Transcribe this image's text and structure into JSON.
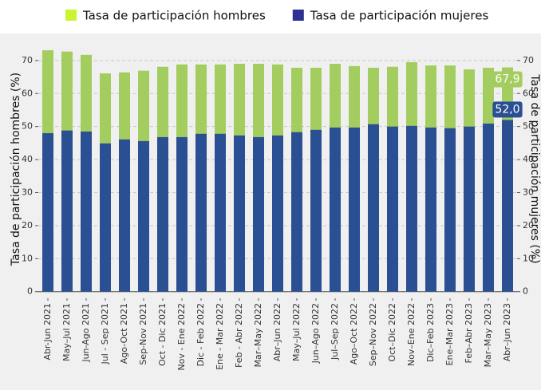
{
  "chart_data": {
    "type": "overlay_bar",
    "categories": [
      "Abr-Jun 2021",
      "May–Jul 2021",
      "Jun-Ago 2021",
      "Jul - Sep 2021",
      "Ago-Oct 2021",
      "Sep-Nov 2021",
      "Oct - Dic 2021",
      "Nov - Ene 2022",
      "Dic - Feb 2022",
      "Ene - Mar 2022",
      "Feb - Abr 2022",
      "Mar–May 2022",
      "Abr–Jun 2022",
      "May–Jul 2022",
      "Jun–Ago 2022",
      "Jul–Sep 2022",
      "Ago–Oct 2022",
      "Sep–Nov 2022",
      "Oct–Dic 2022",
      "Nov–Ene 2022",
      "Dic–Feb 2023",
      "Ene–Mar 2023",
      "Feb–Abr 2023",
      "Mar–May 2023",
      "Abr–Jun 2023"
    ],
    "series": [
      {
        "name": "Tasa de participación hombres",
        "color": "#a3cd5f",
        "legend_color": "#c9f531",
        "values": [
          73.1,
          72.7,
          71.7,
          66.1,
          66.4,
          66.9,
          68.1,
          68.8,
          68.8,
          68.8,
          69.0,
          69.0,
          68.8,
          67.8,
          67.8,
          69.0,
          68.3,
          67.8,
          68.1,
          69.5,
          68.5,
          68.5,
          67.3,
          67.8,
          67.9
        ],
        "value_labels": [
          null,
          null,
          null,
          null,
          null,
          null,
          null,
          null,
          null,
          null,
          null,
          null,
          null,
          null,
          null,
          null,
          null,
          null,
          null,
          null,
          null,
          null,
          null,
          null,
          "67,9"
        ]
      },
      {
        "name": "Tasa de participación mujeres",
        "color": "#2b4f93",
        "legend_color": "#2e3192",
        "axis": "y2",
        "values": [
          48.0,
          48.8,
          48.5,
          44.9,
          46.1,
          45.6,
          46.8,
          46.8,
          47.8,
          47.8,
          47.3,
          46.8,
          47.3,
          48.3,
          49.0,
          49.7,
          49.7,
          50.7,
          50.0,
          50.2,
          49.7,
          49.5,
          50.0,
          50.9,
          52.0
        ],
        "value_labels": [
          null,
          null,
          null,
          null,
          null,
          null,
          null,
          null,
          null,
          null,
          null,
          null,
          null,
          null,
          null,
          null,
          null,
          null,
          null,
          null,
          null,
          null,
          null,
          null,
          "52,0"
        ]
      }
    ],
    "y_label": "Tasa de participación hombres (%)",
    "y2_label": "Tasa de participación mujeres (%)",
    "ylim": [
      -2,
      76
    ],
    "yticks": [
      0,
      10,
      20,
      30,
      40,
      50,
      60,
      70
    ],
    "y2lim": [
      -2,
      76
    ],
    "y2ticks": [
      0,
      10,
      20,
      30,
      40,
      50,
      60,
      70
    ],
    "grid": true,
    "legend": "top"
  }
}
